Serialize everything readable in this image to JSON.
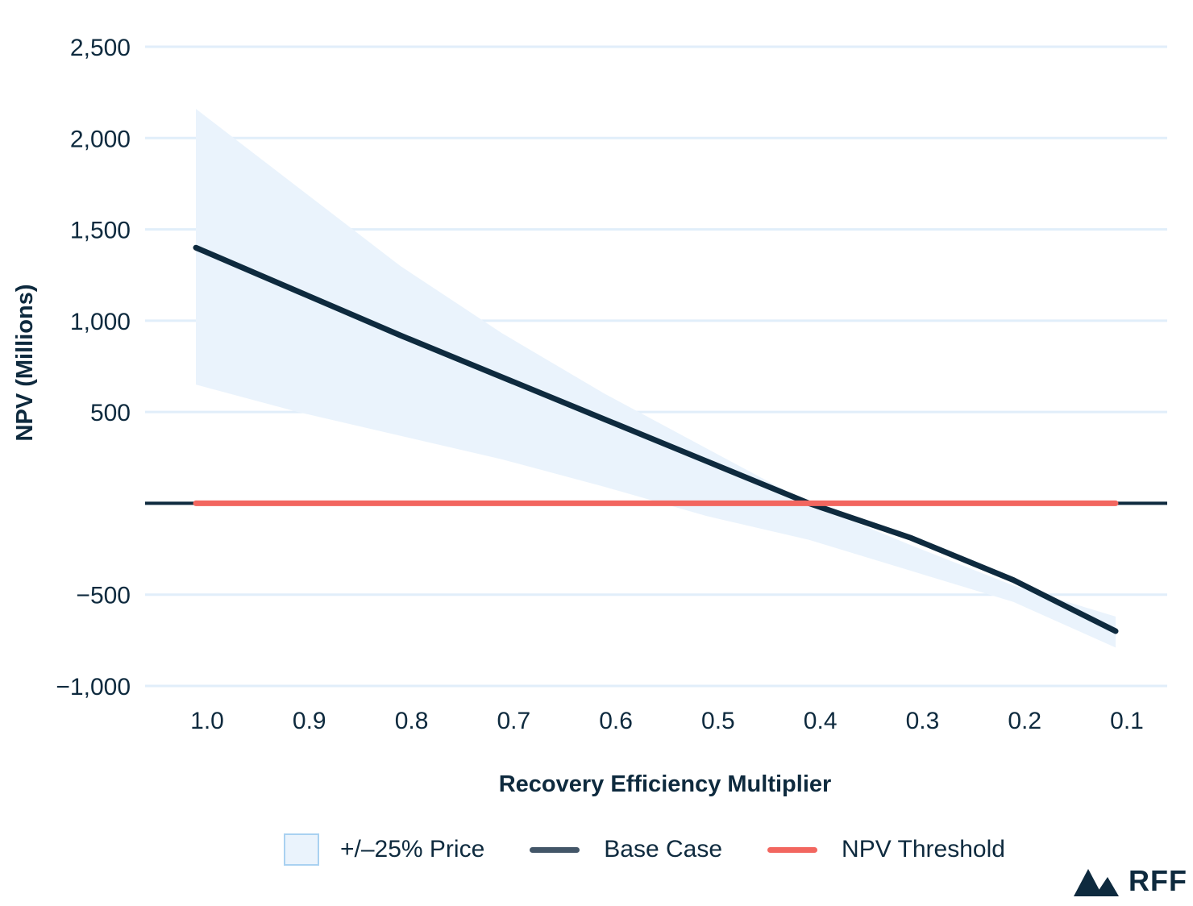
{
  "chart_data": {
    "type": "line",
    "title": "",
    "xlabel": "Recovery Efficiency Multiplier",
    "ylabel": "NPV (Millions)",
    "x": [
      1.0,
      0.9,
      0.8,
      0.7,
      0.6,
      0.5,
      0.4,
      0.3,
      0.2,
      0.1
    ],
    "x_tick_labels": [
      "1.0",
      "0.9",
      "0.8",
      "0.7",
      "0.6",
      "0.5",
      "0.4",
      "0.3",
      "0.2",
      "0.1"
    ],
    "y_ticks": [
      2500,
      2000,
      1500,
      1000,
      500,
      -500,
      -1000
    ],
    "y_tick_labels": [
      "2,500",
      "2,000",
      "1,500",
      "1,000",
      "500",
      "−500",
      "−1,000"
    ],
    "ylim": [
      -1000,
      2500
    ],
    "xlim": [
      1.05,
      0.05
    ],
    "grid": true,
    "series": [
      {
        "name": "+/–25% Price",
        "kind": "band",
        "color": "#eaf3fc",
        "upper": [
          2160,
          1730,
          1300,
          930,
          600,
          300,
          0,
          -230,
          -450,
          -620
        ],
        "lower": [
          650,
          500,
          370,
          240,
          90,
          -70,
          -200,
          -370,
          -540,
          -790
        ]
      },
      {
        "name": "Base Case",
        "kind": "line",
        "color": "#0e2a3e",
        "values": [
          1400,
          1160,
          920,
          690,
          460,
          230,
          0,
          -190,
          -420,
          -700
        ]
      },
      {
        "name": "NPV Threshold",
        "kind": "line",
        "color": "#f2665f",
        "values": [
          0,
          0,
          0,
          0,
          0,
          0,
          0,
          0,
          0,
          0
        ]
      }
    ],
    "zero_line_color": "#0e2a3e",
    "grid_color": "#e1eefa",
    "legend_position": "bottom"
  },
  "legend": {
    "band_label": "+/–25% Price",
    "base_label": "Base Case",
    "threshold_label": "NPV Threshold"
  },
  "brand": {
    "logo_text": "RFF"
  }
}
